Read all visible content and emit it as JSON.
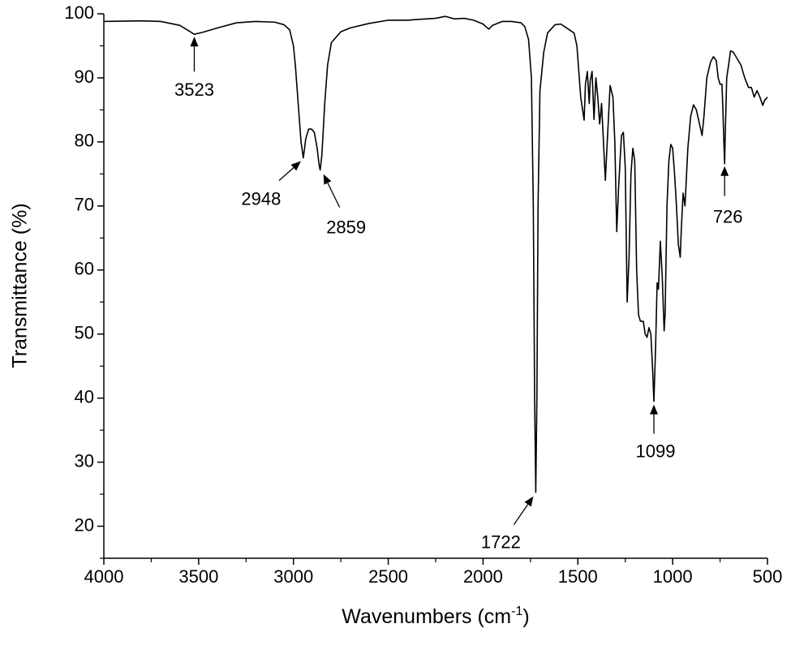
{
  "chart_data": {
    "type": "line",
    "x_label": {
      "text": "Wavenumbers (cm",
      "sup": "-1",
      "end": ")"
    },
    "y_label": "Transmittance (%)",
    "xlim": [
      4000,
      500
    ],
    "ylim": [
      15,
      100
    ],
    "xticks": [
      4000,
      3500,
      3000,
      2500,
      2000,
      1500,
      1000,
      500
    ],
    "xminorticks": [
      3750,
      3250,
      2750,
      2250,
      1750,
      1250,
      750
    ],
    "yticks": [
      20,
      30,
      40,
      50,
      60,
      70,
      80,
      90,
      100
    ],
    "yminorticks": [
      15,
      25,
      35,
      45,
      55,
      65,
      75,
      85,
      95
    ],
    "color": "#000000",
    "x": [
      4000,
      3800,
      3700,
      3600,
      3550,
      3523,
      3480,
      3400,
      3300,
      3200,
      3100,
      3050,
      3020,
      3000,
      2990,
      2975,
      2960,
      2948,
      2935,
      2920,
      2905,
      2890,
      2875,
      2865,
      2859,
      2850,
      2835,
      2820,
      2800,
      2750,
      2700,
      2600,
      2500,
      2400,
      2300,
      2250,
      2200,
      2150,
      2100,
      2050,
      2000,
      1970,
      1950,
      1900,
      1850,
      1800,
      1780,
      1760,
      1745,
      1735,
      1728,
      1722,
      1716,
      1710,
      1700,
      1680,
      1660,
      1620,
      1590,
      1570,
      1550,
      1520,
      1505,
      1495,
      1485,
      1467,
      1460,
      1450,
      1440,
      1435,
      1425,
      1415,
      1405,
      1395,
      1385,
      1375,
      1365,
      1355,
      1345,
      1330,
      1315,
      1305,
      1295,
      1285,
      1270,
      1260,
      1250,
      1240,
      1230,
      1220,
      1210,
      1200,
      1190,
      1180,
      1170,
      1155,
      1145,
      1135,
      1125,
      1115,
      1105,
      1099,
      1090,
      1082,
      1075,
      1065,
      1055,
      1045,
      1040,
      1030,
      1020,
      1010,
      1000,
      990,
      980,
      970,
      960,
      955,
      945,
      935,
      920,
      905,
      890,
      875,
      860,
      845,
      835,
      820,
      800,
      785,
      770,
      760,
      750,
      740,
      735,
      730,
      726,
      722,
      715,
      705,
      695,
      680,
      660,
      640,
      620,
      600,
      585,
      570,
      555,
      540,
      525,
      515,
      500
    ],
    "values": [
      98.8,
      98.9,
      98.8,
      98.2,
      97.3,
      96.8,
      97.1,
      97.8,
      98.6,
      98.8,
      98.7,
      98.3,
      97.5,
      95,
      92,
      86,
      80,
      77.5,
      80.5,
      82,
      82,
      81.5,
      79,
      76.5,
      75.6,
      78,
      86,
      92,
      95.5,
      97.2,
      97.8,
      98.5,
      99,
      99,
      99.2,
      99.3,
      99.6,
      99.2,
      99.3,
      99,
      98.4,
      97.6,
      98.2,
      98.8,
      98.8,
      98.6,
      98,
      96,
      90,
      70,
      40,
      25.3,
      40,
      70,
      88,
      94,
      97,
      98.3,
      98.4,
      98,
      97.6,
      97,
      95,
      91,
      87,
      83.4,
      89,
      91,
      86,
      89.5,
      91,
      83.5,
      90,
      87,
      82.8,
      86,
      80,
      74,
      80,
      88.8,
      87,
      80,
      66,
      73,
      81,
      81.5,
      76,
      55,
      62,
      75,
      79,
      77,
      60,
      53,
      52,
      52,
      50,
      49.5,
      51,
      50,
      44,
      39.5,
      48,
      58,
      57,
      64.5,
      59,
      50.5,
      53,
      70,
      77,
      79.6,
      79,
      75,
      70,
      64,
      62,
      66,
      72,
      70,
      79,
      84,
      85.8,
      85,
      83,
      81,
      84,
      90,
      92.5,
      93.3,
      92.7,
      90,
      89,
      89,
      85,
      80,
      76.6,
      82,
      90,
      92,
      94.2,
      94,
      93,
      92,
      90,
      88.5,
      88.5,
      87,
      88,
      87,
      85.7,
      86.5,
      87
    ],
    "annotations": [
      {
        "label": "3523",
        "x": 3523,
        "y": 96.8
      },
      {
        "label": "2948",
        "x": 2948,
        "y": 77.5
      },
      {
        "label": "2859",
        "x": 2859,
        "y": 75.6
      },
      {
        "label": "1722",
        "x": 1722,
        "y": 25.3
      },
      {
        "label": "1099",
        "x": 1099,
        "y": 39.5
      },
      {
        "label": "726",
        "x": 726,
        "y": 76.6
      }
    ]
  }
}
